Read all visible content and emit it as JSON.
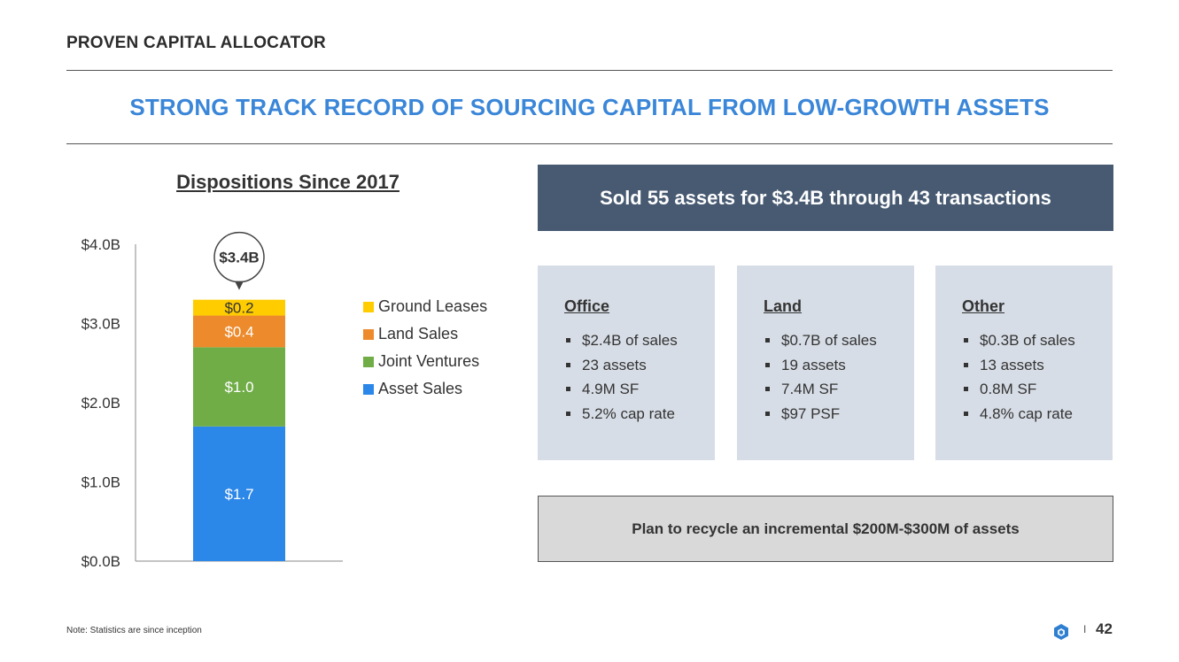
{
  "section_label": "PROVEN CAPITAL ALLOCATOR",
  "headline": "STRONG TRACK RECORD OF SOURCING CAPITAL FROM LOW-GROWTH ASSETS",
  "summary": "Sold 55 assets for $3.4B through 43 transactions",
  "cards": [
    {
      "title": "Office",
      "items": [
        "$2.4B of sales",
        "23 assets",
        "4.9M SF",
        "5.2% cap rate"
      ]
    },
    {
      "title": "Land",
      "items": [
        "$0.7B of sales",
        "19 assets",
        "7.4M SF",
        "$97 PSF"
      ]
    },
    {
      "title": "Other",
      "items": [
        "$0.3B of sales",
        "13 assets",
        "0.8M SF",
        "4.8% cap rate"
      ]
    }
  ],
  "plan": "Plan to recycle an incremental $200M-$300M of assets",
  "footnote": "Note: Statistics are since inception",
  "page_number": "42",
  "separator": "I",
  "colors": {
    "accent": "#3a86d8",
    "navy": "#475a72",
    "card_bg": "#d7dde6",
    "plan_bg": "#d9d9d9",
    "logo": "#2f7fd1"
  },
  "chart_data": {
    "type": "bar",
    "stacked": true,
    "title": "Dispositions Since 2017",
    "categories": [
      ""
    ],
    "ylim": [
      0,
      4.0
    ],
    "yticks": [
      0,
      1.0,
      2.0,
      3.0,
      4.0
    ],
    "ytick_labels": [
      "$0.0B",
      "$1.0B",
      "$2.0B",
      "$3.0B",
      "$4.0B"
    ],
    "series": [
      {
        "name": "Asset Sales",
        "values": [
          1.7
        ],
        "label": "$1.7",
        "color": "#2b87e8",
        "label_color": "#ffffff"
      },
      {
        "name": "Joint Ventures",
        "values": [
          1.0
        ],
        "label": "$1.0",
        "color": "#70ad47",
        "label_color": "#ffffff"
      },
      {
        "name": "Land Sales",
        "values": [
          0.4
        ],
        "label": "$0.4",
        "color": "#ed8a2b",
        "label_color": "#ffffff"
      },
      {
        "name": "Ground Leases",
        "values": [
          0.2
        ],
        "label": "$0.2",
        "color": "#ffcc00",
        "label_color": "#333333"
      }
    ],
    "legend_order": [
      "Ground Leases",
      "Land Sales",
      "Joint Ventures",
      "Asset Sales"
    ],
    "total_label": "$3.4B",
    "legend_position": "right"
  }
}
